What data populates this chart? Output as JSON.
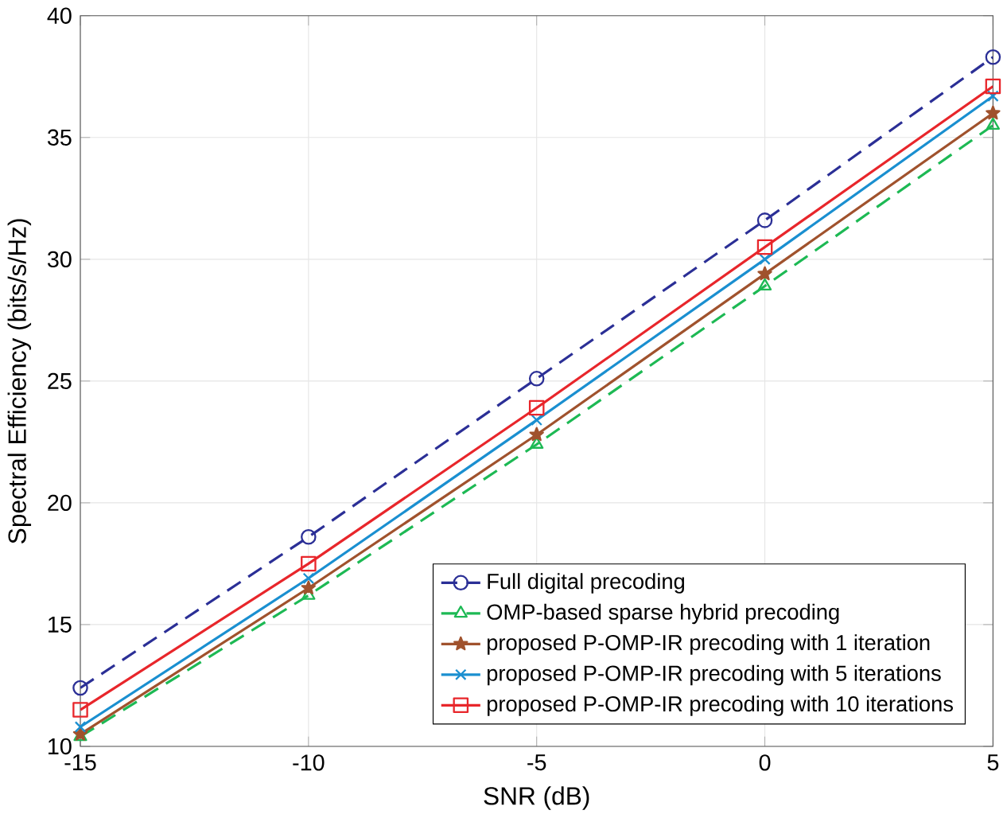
{
  "chart_data": {
    "type": "line",
    "xlabel": "SNR (dB)",
    "ylabel": "Spectral Efficiency (bits/s/Hz)",
    "x": [
      -15,
      -10,
      -5,
      0,
      5
    ],
    "series": [
      {
        "name": "Full digital precoding",
        "color": "#2b2f96",
        "marker": "circle",
        "line_style": "dashed",
        "values": [
          12.4,
          18.6,
          25.1,
          31.6,
          38.3
        ]
      },
      {
        "name": "OMP-based sparse hybrid precoding",
        "color": "#1db954",
        "marker": "triangle",
        "line_style": "dashed",
        "values": [
          10.4,
          16.2,
          22.4,
          28.9,
          35.5
        ]
      },
      {
        "name": "proposed P-OMP-IR precoding with 1 iteration",
        "color": "#a0522d",
        "marker": "star",
        "line_style": "solid",
        "values": [
          10.5,
          16.5,
          22.8,
          29.4,
          36.0
        ]
      },
      {
        "name": "proposed P-OMP-IR precoding with 5 iterations",
        "color": "#1a8fd0",
        "marker": "cross",
        "line_style": "solid",
        "values": [
          10.8,
          16.9,
          23.4,
          30.0,
          36.7
        ]
      },
      {
        "name": "proposed P-OMP-IR precoding with 10 iterations",
        "color": "#e8262b",
        "marker": "square",
        "line_style": "solid",
        "values": [
          11.5,
          17.5,
          23.9,
          30.5,
          37.1
        ]
      }
    ],
    "xlim": [
      -15,
      5
    ],
    "ylim": [
      10,
      40
    ],
    "xticks": [
      -15,
      -10,
      -5,
      0,
      5
    ],
    "yticks": [
      10,
      15,
      20,
      25,
      30,
      35,
      40
    ],
    "grid": true,
    "legend": "bottom right"
  }
}
